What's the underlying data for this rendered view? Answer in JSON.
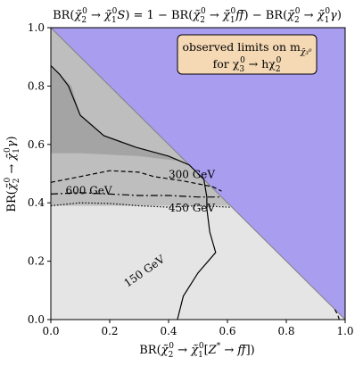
{
  "chart_data": {
    "type": "area",
    "title": "BR(χ̃₂⁰ → χ̃₁⁰S) = 1 − BR(χ̃₂⁰ → χ̃₁⁰ff̄) − BR(χ̃₂⁰ → χ̃₁⁰γ)",
    "xlabel": "BR(χ̃₂⁰ → χ̃₁⁰[Z* → ff̄])",
    "ylabel": "BR(χ̃₂⁰ → χ̃₁⁰γ)",
    "xlim": [
      0,
      1
    ],
    "ylim": [
      0,
      1
    ],
    "xticks": [
      "0.0",
      "0.2",
      "0.4",
      "0.6",
      "0.8",
      "1.0"
    ],
    "yticks": [
      "0.0",
      "0.2",
      "0.4",
      "0.6",
      "0.8",
      "1.0"
    ],
    "grid": false,
    "annotation": {
      "line1": "observed limits on m",
      "line1_sub": "χ̃₃⁰",
      "line2_prefix": "for χ",
      "line2_mid": "→ hχ",
      "line2_sub1": "3",
      "line2_sup1": "0",
      "line2_sub2": "2",
      "line2_sup2": "0",
      "placement": "top-right"
    },
    "excluded_region_color": "#a99df0",
    "shade_colors": {
      "light": "#e5e5e5",
      "medium": "#bebebe",
      "dark": "#a4a4a4"
    },
    "regions": {
      "unphysical": [
        [
          0,
          1
        ],
        [
          1,
          1
        ],
        [
          1,
          0
        ]
      ],
      "light": [
        [
          0,
          0
        ],
        [
          0,
          1
        ],
        [
          1,
          0
        ]
      ],
      "medium": [
        [
          0,
          0.39
        ],
        [
          0,
          1
        ],
        [
          0.61,
          0.39
        ]
      ],
      "dark": [
        [
          0,
          0.57
        ],
        [
          0,
          0.87
        ],
        [
          0.03,
          0.84
        ],
        [
          0.07,
          0.8
        ],
        [
          0.1,
          0.7
        ],
        [
          0.18,
          0.63
        ],
        [
          0.29,
          0.59
        ],
        [
          0.4,
          0.56
        ],
        [
          0.45,
          0.54
        ],
        [
          0.46,
          0.54
        ],
        [
          0.3,
          0.56
        ],
        [
          0.1,
          0.57
        ]
      ]
    },
    "contours": [
      {
        "label": "150 GeV",
        "style": "solid",
        "label_x": 0.26,
        "label_y": 0.11,
        "points": [
          [
            0.0,
            0.87
          ],
          [
            0.03,
            0.84
          ],
          [
            0.06,
            0.8
          ],
          [
            0.1,
            0.7
          ],
          [
            0.18,
            0.63
          ],
          [
            0.29,
            0.59
          ],
          [
            0.4,
            0.56
          ],
          [
            0.47,
            0.53
          ],
          [
            0.52,
            0.48
          ],
          [
            0.53,
            0.42
          ],
          [
            0.53,
            0.38
          ],
          [
            0.54,
            0.3
          ],
          [
            0.56,
            0.23
          ],
          [
            0.5,
            0.16
          ],
          [
            0.45,
            0.08
          ],
          [
            0.43,
            0.0
          ]
        ]
      },
      {
        "label": "300 GeV",
        "style": "dashed",
        "label_x": 0.4,
        "label_y": 0.485,
        "points": [
          [
            0.0,
            0.47
          ],
          [
            0.1,
            0.49
          ],
          [
            0.2,
            0.51
          ],
          [
            0.3,
            0.505
          ],
          [
            0.35,
            0.49
          ],
          [
            0.45,
            0.475
          ],
          [
            0.55,
            0.455
          ],
          [
            0.58,
            0.44
          ]
        ]
      },
      {
        "label": "600 GeV",
        "style": "dashdot",
        "label_x": 0.05,
        "label_y": 0.43,
        "points": [
          [
            0.0,
            0.43
          ],
          [
            0.1,
            0.435
          ],
          [
            0.2,
            0.43
          ],
          [
            0.3,
            0.425
          ],
          [
            0.4,
            0.425
          ],
          [
            0.5,
            0.42
          ],
          [
            0.58,
            0.42
          ]
        ]
      },
      {
        "label": "450 GeV",
        "style": "dotted",
        "label_x": 0.4,
        "label_y": 0.37,
        "points": [
          [
            0.0,
            0.39
          ],
          [
            0.1,
            0.4
          ],
          [
            0.2,
            0.398
          ],
          [
            0.3,
            0.39
          ],
          [
            0.4,
            0.385
          ],
          [
            0.5,
            0.39
          ],
          [
            0.61,
            0.385
          ]
        ]
      },
      {
        "label": "",
        "style": "dashed",
        "points": [
          [
            0.965,
            0.035
          ],
          [
            0.975,
            0.015
          ],
          [
            0.98,
            0.0
          ]
        ]
      }
    ]
  }
}
